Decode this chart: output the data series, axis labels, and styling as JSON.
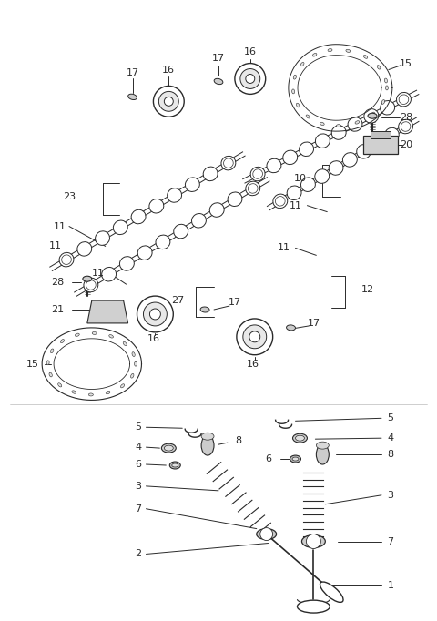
{
  "bg_color": "#ffffff",
  "line_color": "#2a2a2a",
  "fig_w": 4.8,
  "fig_h": 6.82,
  "dpi": 100
}
